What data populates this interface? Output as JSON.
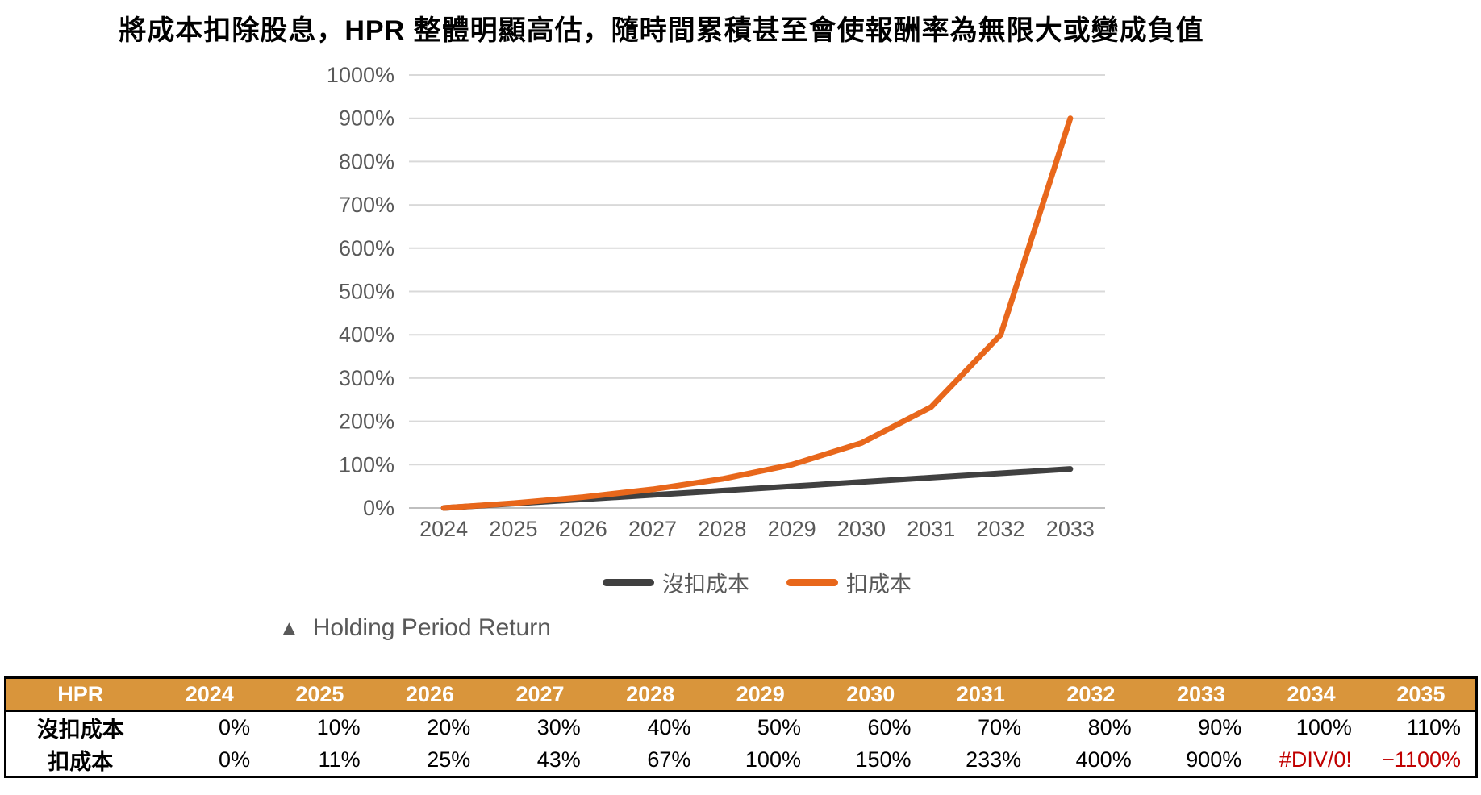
{
  "title": "將成本扣除股息，HPR 整體明顯高估，隨時間累積甚至會使報酬率為無限大或變成負值",
  "caption": {
    "marker": "▲",
    "text": "Holding Period Return"
  },
  "colors": {
    "series_no_cost": "#404040",
    "series_cost": "#E8671B",
    "table_header_bg": "#D9953B",
    "table_header_text": "#ffffff",
    "error_text": "#C00000",
    "axis_text": "#595959",
    "gridline": "#D9D9D9",
    "axis_line": "#BFBFBF"
  },
  "chart_data": {
    "type": "line",
    "categories": [
      "2024",
      "2025",
      "2026",
      "2027",
      "2028",
      "2029",
      "2030",
      "2031",
      "2032",
      "2033"
    ],
    "series": [
      {
        "name": "沒扣成本",
        "color": "#404040",
        "values": [
          0,
          10,
          20,
          30,
          40,
          50,
          60,
          70,
          80,
          90
        ]
      },
      {
        "name": "扣成本",
        "color": "#E8671B",
        "values": [
          0,
          11,
          25,
          43,
          67,
          100,
          150,
          233,
          400,
          900
        ]
      }
    ],
    "title": "",
    "xlabel": "",
    "ylabel": "",
    "ylim": [
      0,
      1000
    ],
    "ytick_step": 100,
    "ytick_suffix": "%",
    "grid": true,
    "legend_position": "bottom"
  },
  "table": {
    "header": [
      "HPR",
      "2024",
      "2025",
      "2026",
      "2027",
      "2028",
      "2029",
      "2030",
      "2031",
      "2032",
      "2033",
      "2034",
      "2035"
    ],
    "rows": [
      {
        "label": "沒扣成本",
        "values": [
          "0%",
          "10%",
          "20%",
          "30%",
          "40%",
          "50%",
          "60%",
          "70%",
          "80%",
          "90%",
          "100%",
          "110%"
        ],
        "red_indices": []
      },
      {
        "label": "扣成本",
        "values": [
          "0%",
          "11%",
          "25%",
          "43%",
          "67%",
          "100%",
          "150%",
          "233%",
          "400%",
          "900%",
          "#DIV/0!",
          "−1100%"
        ],
        "red_indices": [
          10,
          11
        ]
      }
    ]
  }
}
